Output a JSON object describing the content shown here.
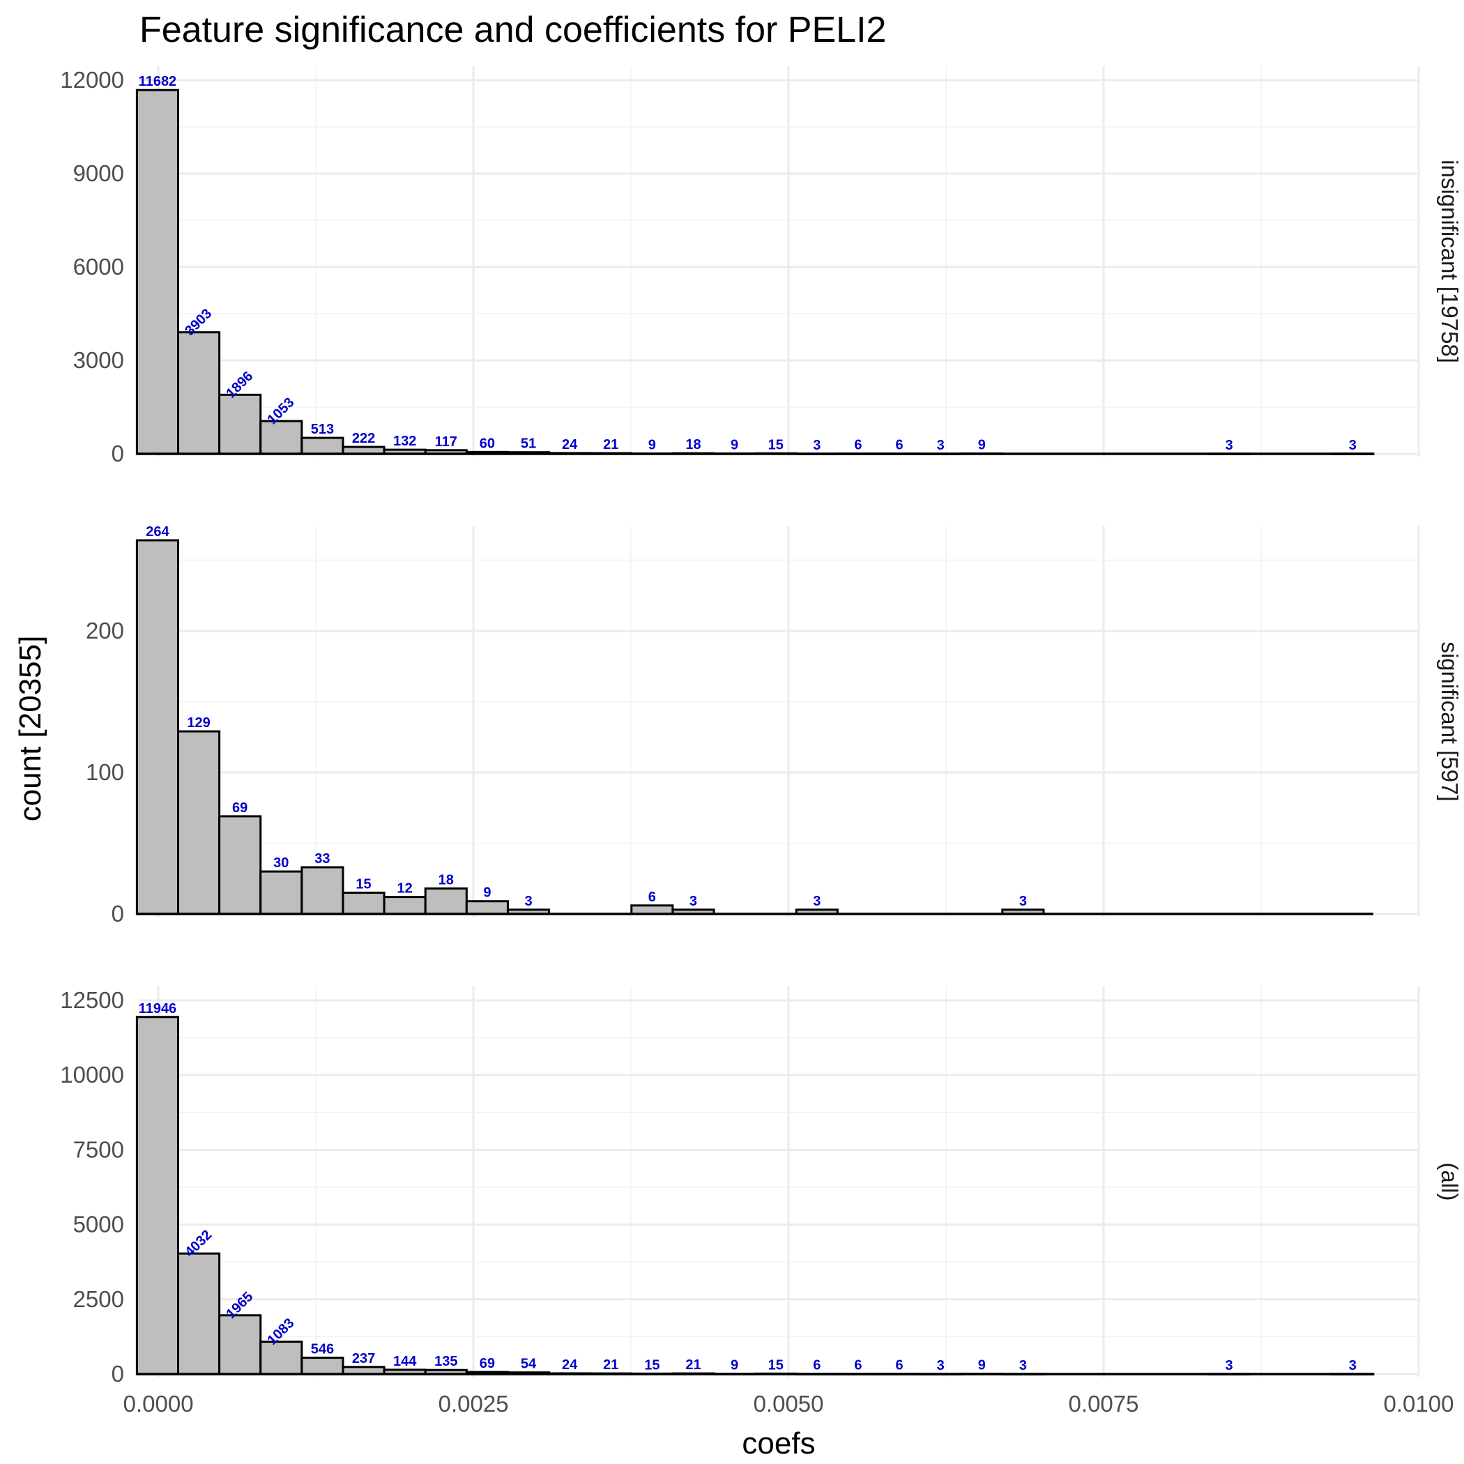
{
  "chart_data": {
    "type": "bar",
    "title": "Feature significance and coefficients for PELI2",
    "xlabel": "coefs",
    "ylabel": "count [20355]",
    "x_ticks": [
      "0.0000",
      "0.0025",
      "0.0050",
      "0.0075",
      "0.0100"
    ],
    "x_tick_values": [
      0,
      0.0025,
      0.005,
      0.0075,
      0.01
    ],
    "xlim": [
      -0.00015,
      0.01
    ],
    "bin_width": 0.000327,
    "bin_start": -0.00017,
    "num_bins": 30,
    "grid": true,
    "legend": "none",
    "bar_fill": "#bebebe",
    "bar_stroke": "#000000",
    "label_color": "#0000cc",
    "panels": [
      {
        "name": "insignificant [19758]",
        "y_ticks": [
          "0",
          "3000",
          "6000",
          "9000",
          "12000"
        ],
        "y_tick_values": [
          0,
          3000,
          6000,
          9000,
          12000
        ],
        "ylim": [
          0,
          12000
        ],
        "bins": [
          {
            "i": 0,
            "count": 11682,
            "label": "11682"
          },
          {
            "i": 1,
            "count": 3903,
            "label": "3903",
            "rotated": true
          },
          {
            "i": 2,
            "count": 1896,
            "label": "1896",
            "rotated": true
          },
          {
            "i": 3,
            "count": 1053,
            "label": "1053",
            "rotated": true
          },
          {
            "i": 4,
            "count": 513,
            "label": "513"
          },
          {
            "i": 5,
            "count": 222,
            "label": "222"
          },
          {
            "i": 6,
            "count": 132,
            "label": "132"
          },
          {
            "i": 7,
            "count": 117,
            "label": "117"
          },
          {
            "i": 8,
            "count": 60,
            "label": "60"
          },
          {
            "i": 9,
            "count": 51,
            "label": "51"
          },
          {
            "i": 10,
            "count": 24,
            "label": "24"
          },
          {
            "i": 11,
            "count": 21,
            "label": "21"
          },
          {
            "i": 12,
            "count": 9,
            "label": "9"
          },
          {
            "i": 13,
            "count": 18,
            "label": "18"
          },
          {
            "i": 14,
            "count": 9,
            "label": "9"
          },
          {
            "i": 15,
            "count": 15,
            "label": "15"
          },
          {
            "i": 16,
            "count": 3,
            "label": "3"
          },
          {
            "i": 17,
            "count": 6,
            "label": "6"
          },
          {
            "i": 18,
            "count": 6,
            "label": "6"
          },
          {
            "i": 19,
            "count": 3,
            "label": "3"
          },
          {
            "i": 20,
            "count": 9,
            "label": "9"
          },
          {
            "i": 26,
            "count": 3,
            "label": "3"
          },
          {
            "i": 29,
            "count": 3,
            "label": "3"
          }
        ]
      },
      {
        "name": "significant [597]",
        "y_ticks": [
          "0",
          "100",
          "200"
        ],
        "y_tick_values": [
          0,
          100,
          200
        ],
        "ylim": [
          0,
          264
        ],
        "bins": [
          {
            "i": 0,
            "count": 264,
            "label": "264"
          },
          {
            "i": 1,
            "count": 129,
            "label": "129"
          },
          {
            "i": 2,
            "count": 69,
            "label": "69"
          },
          {
            "i": 3,
            "count": 30,
            "label": "30"
          },
          {
            "i": 4,
            "count": 33,
            "label": "33"
          },
          {
            "i": 5,
            "count": 15,
            "label": "15"
          },
          {
            "i": 6,
            "count": 12,
            "label": "12"
          },
          {
            "i": 7,
            "count": 18,
            "label": "18"
          },
          {
            "i": 8,
            "count": 9,
            "label": "9"
          },
          {
            "i": 9,
            "count": 3,
            "label": "3"
          },
          {
            "i": 12,
            "count": 6,
            "label": "6"
          },
          {
            "i": 13,
            "count": 3,
            "label": "3"
          },
          {
            "i": 16,
            "count": 3,
            "label": "3"
          },
          {
            "i": 21,
            "count": 3,
            "label": "3"
          }
        ]
      },
      {
        "name": "(all)",
        "y_ticks": [
          "0",
          "2500",
          "5000",
          "7500",
          "10000",
          "12500"
        ],
        "y_tick_values": [
          0,
          2500,
          5000,
          7500,
          10000,
          12500
        ],
        "ylim": [
          0,
          12500
        ],
        "bins": [
          {
            "i": 0,
            "count": 11946,
            "label": "11946"
          },
          {
            "i": 1,
            "count": 4032,
            "label": "4032",
            "rotated": true
          },
          {
            "i": 2,
            "count": 1965,
            "label": "1965",
            "rotated": true
          },
          {
            "i": 3,
            "count": 1083,
            "label": "1083",
            "rotated": true
          },
          {
            "i": 4,
            "count": 546,
            "label": "546"
          },
          {
            "i": 5,
            "count": 237,
            "label": "237"
          },
          {
            "i": 6,
            "count": 144,
            "label": "144"
          },
          {
            "i": 7,
            "count": 135,
            "label": "135"
          },
          {
            "i": 8,
            "count": 69,
            "label": "69"
          },
          {
            "i": 9,
            "count": 54,
            "label": "54"
          },
          {
            "i": 10,
            "count": 24,
            "label": "24"
          },
          {
            "i": 11,
            "count": 21,
            "label": "21"
          },
          {
            "i": 12,
            "count": 15,
            "label": "15"
          },
          {
            "i": 13,
            "count": 21,
            "label": "21"
          },
          {
            "i": 14,
            "count": 9,
            "label": "9"
          },
          {
            "i": 15,
            "count": 15,
            "label": "15"
          },
          {
            "i": 16,
            "count": 6,
            "label": "6"
          },
          {
            "i": 17,
            "count": 6,
            "label": "6"
          },
          {
            "i": 18,
            "count": 6,
            "label": "6"
          },
          {
            "i": 19,
            "count": 3,
            "label": "3"
          },
          {
            "i": 20,
            "count": 9,
            "label": "9"
          },
          {
            "i": 21,
            "count": 3,
            "label": "3"
          },
          {
            "i": 26,
            "count": 3,
            "label": "3"
          },
          {
            "i": 29,
            "count": 3,
            "label": "3"
          }
        ]
      }
    ]
  }
}
